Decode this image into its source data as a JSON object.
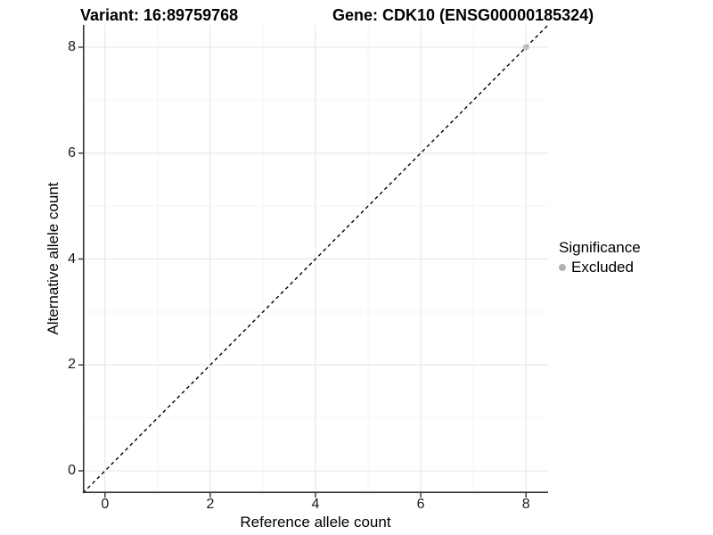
{
  "title": {
    "variant": "Variant: 16:89759768",
    "gene": "Gene: CDK10 (ENSG00000185324)"
  },
  "axes": {
    "x_label": "Reference allele count",
    "y_label": "Alternative allele count",
    "x_ticks": [
      0,
      2,
      4,
      6,
      8
    ],
    "y_ticks": [
      0,
      2,
      4,
      6,
      8
    ],
    "minor_ticks": [
      1,
      3,
      5,
      7
    ]
  },
  "legend": {
    "title": "Significance",
    "items": [
      {
        "label": "Excluded",
        "color": "#b3b3b3"
      }
    ]
  },
  "colors": {
    "grid_major": "#e8e8e8",
    "grid_minor": "#f3f3f3",
    "axis_line": "#333333",
    "reference_line": "#000000",
    "point": "#bebebe",
    "background": "#ffffff"
  },
  "chart_data": {
    "type": "scatter",
    "title": "Variant: 16:89759768 | Gene: CDK10 (ENSG00000185324)",
    "xlabel": "Reference allele count",
    "ylabel": "Alternative allele count",
    "xlim": [
      -0.42,
      8.42
    ],
    "ylim": [
      -0.42,
      8.42
    ],
    "grid": "on",
    "legend_position": "right",
    "series": [
      {
        "name": "Excluded",
        "color": "#bebebe",
        "points": [
          [
            8,
            8
          ]
        ]
      }
    ],
    "reference_line": {
      "type": "identity",
      "equation": "y = x",
      "style": "dashed",
      "color": "#000000"
    }
  }
}
